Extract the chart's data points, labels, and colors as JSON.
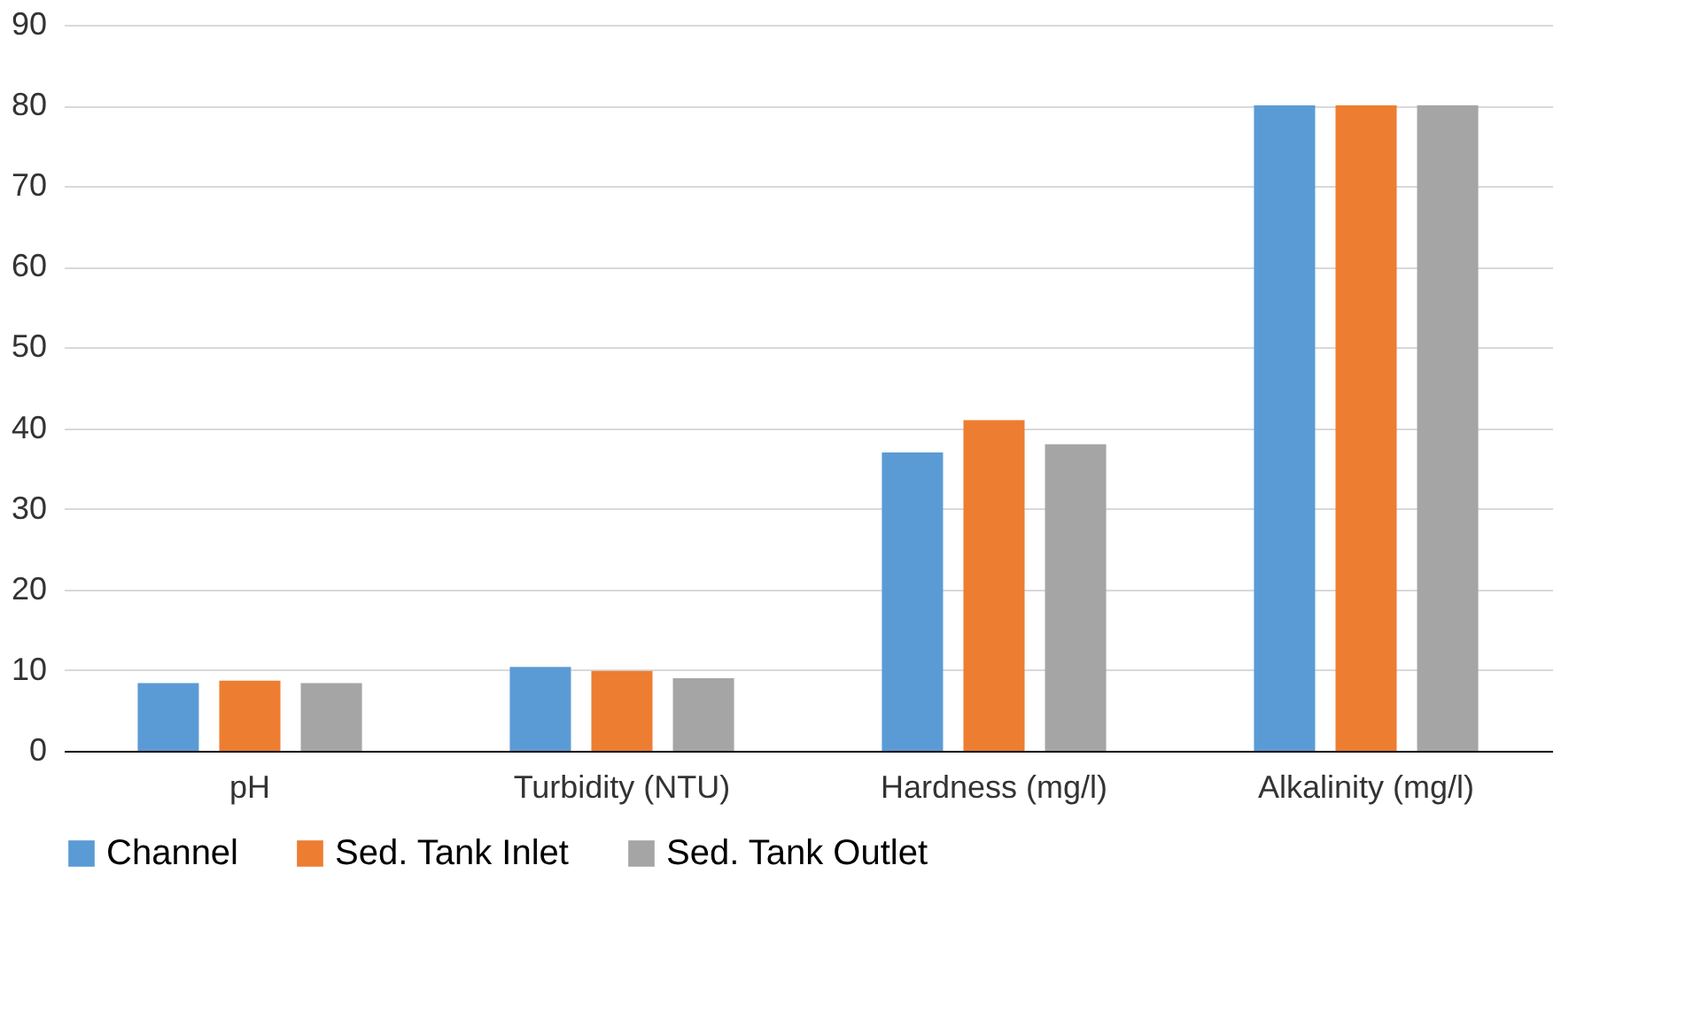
{
  "chart_data": {
    "type": "bar",
    "categories": [
      "pH",
      "Turbidity (NTU)",
      "Hardness (mg/l)",
      "Alkalinity (mg/l)"
    ],
    "series": [
      {
        "name": "Channel",
        "color": "#5b9bd5",
        "values": [
          8.4,
          10.4,
          37,
          80
        ]
      },
      {
        "name": "Sed. Tank Inlet",
        "color": "#ed7d31",
        "values": [
          8.7,
          9.9,
          41,
          80
        ]
      },
      {
        "name": "Sed. Tank Outlet",
        "color": "#a5a5a5",
        "values": [
          8.4,
          9.0,
          38,
          80
        ]
      }
    ],
    "ylim": [
      0,
      90
    ],
    "yticks": [
      0,
      10,
      20,
      30,
      40,
      50,
      60,
      70,
      80,
      90
    ],
    "grid": "y",
    "legend": "bottom"
  }
}
